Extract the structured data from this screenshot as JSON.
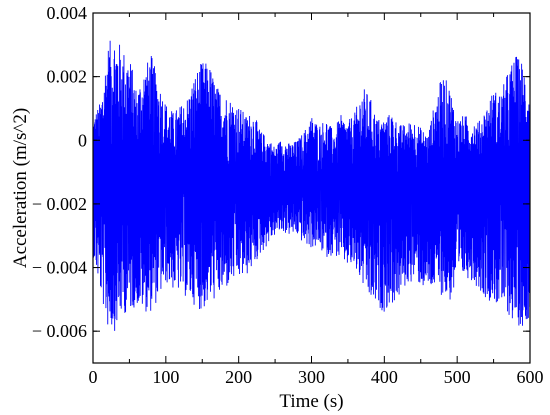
{
  "chart_data": {
    "type": "line",
    "title": "",
    "xlabel": "Time (s)",
    "ylabel": "Acceleration (m/s^2)",
    "xlim": [
      0,
      600
    ],
    "ylim": [
      -0.007,
      0.004
    ],
    "grid": false,
    "legend": "none",
    "x_ticks": [
      0,
      100,
      200,
      300,
      400,
      500,
      600
    ],
    "x_tick_labels": [
      "0",
      "100",
      "200",
      "300",
      "400",
      "500",
      "600"
    ],
    "y_ticks": [
      0.004,
      0.002,
      0,
      -0.002,
      -0.004,
      -0.006
    ],
    "y_tick_labels": [
      "0.004",
      "0.002",
      "0",
      "− 0.002",
      "− 0.004",
      "− 0.006"
    ],
    "series": [
      {
        "color": "#0000ff",
        "description_envelope": {
          "x": [
            0,
            10,
            20,
            30,
            40,
            50,
            60,
            70,
            80,
            90,
            100,
            110,
            120,
            130,
            140,
            150,
            160,
            170,
            180,
            190,
            200,
            210,
            220,
            230,
            240,
            250,
            260,
            270,
            280,
            290,
            300,
            310,
            320,
            330,
            340,
            350,
            360,
            370,
            380,
            390,
            400,
            410,
            420,
            430,
            440,
            450,
            460,
            470,
            480,
            490,
            500,
            510,
            520,
            530,
            540,
            550,
            560,
            570,
            580,
            590,
            600
          ],
          "upper": [
            0.0008,
            0.0012,
            0.003,
            0.0034,
            0.0029,
            0.0027,
            0.0016,
            0.0023,
            0.0027,
            0.0019,
            0.0012,
            0.0009,
            0.0011,
            0.0014,
            0.0021,
            0.0025,
            0.0024,
            0.0017,
            0.0015,
            0.0013,
            0.0011,
            0.0008,
            0.0009,
            0.0003,
            0.0001,
            -0.0002,
            0.0001,
            -0.0001,
            0.0,
            0.0003,
            0.0008,
            0.0005,
            0.0007,
            0.0003,
            0.0008,
            0.0006,
            0.0009,
            0.0017,
            0.0014,
            0.0007,
            0.0007,
            0.0009,
            0.0005,
            0.0005,
            0.0007,
            0.0004,
            0.0002,
            0.0013,
            0.0021,
            0.0017,
            0.0007,
            0.0008,
            0.0007,
            0.0006,
            0.0011,
            0.0016,
            0.0015,
            0.0022,
            0.0027,
            0.0025,
            0.0017
          ],
          "lower": [
            -0.0036,
            -0.0048,
            -0.0059,
            -0.006,
            -0.0055,
            -0.0054,
            -0.0052,
            -0.0054,
            -0.0054,
            -0.005,
            -0.0045,
            -0.0047,
            -0.0048,
            -0.005,
            -0.0052,
            -0.0054,
            -0.0051,
            -0.005,
            -0.0048,
            -0.0045,
            -0.0044,
            -0.0043,
            -0.004,
            -0.0036,
            -0.0033,
            -0.003,
            -0.0029,
            -0.003,
            -0.003,
            -0.0033,
            -0.0034,
            -0.0034,
            -0.0037,
            -0.0036,
            -0.0038,
            -0.004,
            -0.0041,
            -0.0046,
            -0.0051,
            -0.0053,
            -0.0054,
            -0.0052,
            -0.005,
            -0.0046,
            -0.0044,
            -0.0046,
            -0.0048,
            -0.0047,
            -0.0049,
            -0.0051,
            -0.0047,
            -0.0043,
            -0.0044,
            -0.0047,
            -0.005,
            -0.0051,
            -0.0053,
            -0.0055,
            -0.0058,
            -0.0059,
            -0.0055
          ],
          "center": -0.0013
        }
      }
    ]
  }
}
